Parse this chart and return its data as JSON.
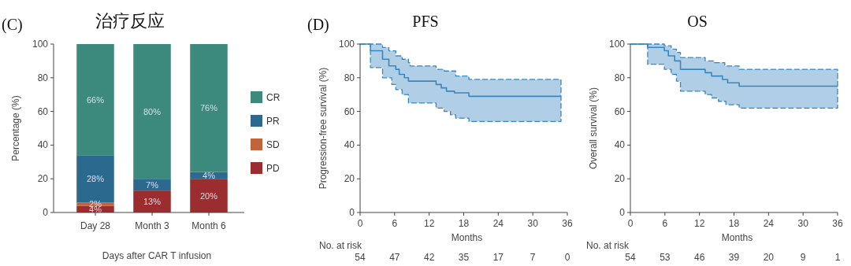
{
  "chart_data": [
    {
      "type": "bar",
      "stacked": true,
      "title": "治疗反应",
      "ylabel": "Percentage (%)",
      "xlabel": "Days after CAR T infusion",
      "categories": [
        "Day 28",
        "Month 3",
        "Month 6"
      ],
      "ylim": [
        0,
        100
      ],
      "yticks": [
        0,
        20,
        40,
        60,
        80,
        100
      ],
      "legend": "right",
      "annotations": [
        "(C)"
      ],
      "series": [
        {
          "name": "PD",
          "color": "#9b2d2e",
          "values": [
            4,
            13,
            20
          ],
          "value_labels": [
            "4%",
            "13%",
            "20%"
          ]
        },
        {
          "name": "SD",
          "color": "#c0643c",
          "values": [
            2,
            0,
            0
          ],
          "value_labels": [
            "2%",
            null,
            null
          ]
        },
        {
          "name": "PR",
          "color": "#2b6a8e",
          "values": [
            28,
            7,
            4
          ],
          "value_labels": [
            "28%",
            "7%",
            "4%"
          ]
        },
        {
          "name": "CR",
          "color": "#3b8a7d",
          "values": [
            66,
            80,
            76
          ],
          "value_labels": [
            "66%",
            "80%",
            "76%"
          ]
        }
      ]
    },
    {
      "type": "step",
      "title": "PFS",
      "ylabel": "Progression-free survival (%)",
      "xlabel": "Months",
      "xlim": [
        0,
        36
      ],
      "xticks": [
        0,
        6,
        12,
        18,
        24,
        30,
        36
      ],
      "ylim": [
        0,
        100
      ],
      "yticks": [
        0,
        20,
        40,
        60,
        80,
        100
      ],
      "annotations": [
        "(D)",
        "No. at risk",
        "54",
        "47",
        "42",
        "35",
        "17",
        "7",
        "0"
      ],
      "series": [
        {
          "color": "#3a87c0",
          "line_style": "solid",
          "x": [
            0,
            1.8,
            3.9,
            5.0,
            5.5,
            6.2,
            6.8,
            7.3,
            7.7,
            8.4,
            8.7,
            13.2,
            14.1,
            14.6,
            15.0,
            15.7,
            16.4,
            16.6,
            18.9,
            34.9
          ],
          "values": [
            100,
            96,
            91,
            87,
            87,
            85,
            82,
            82,
            80,
            78,
            78,
            76,
            74,
            74,
            72,
            72,
            71,
            71,
            69,
            69
          ],
          "upper": [
            100,
            100,
            98,
            96,
            96,
            93,
            93,
            91,
            91,
            89,
            87,
            85,
            85,
            84,
            84,
            84,
            84,
            81,
            79,
            79
          ],
          "lower": [
            100,
            86,
            80,
            80,
            76,
            73,
            73,
            70,
            70,
            65,
            65,
            62,
            62,
            60,
            60,
            58,
            58,
            56,
            54,
            54
          ]
        }
      ]
    },
    {
      "type": "step",
      "title": "OS",
      "ylabel": "Overall survival (%)",
      "xlabel": "Months",
      "xlim": [
        0,
        36
      ],
      "xticks": [
        0,
        6,
        12,
        18,
        24,
        30,
        36
      ],
      "ylim": [
        0,
        100
      ],
      "yticks": [
        0,
        20,
        40,
        60,
        80,
        100
      ],
      "annotations": [
        "No. at risk",
        "54",
        "53",
        "46",
        "39",
        "20",
        "9",
        "1"
      ],
      "series": [
        {
          "color": "#3a87c0",
          "line_style": "solid",
          "x": [
            0,
            3.0,
            5.9,
            6.6,
            7.1,
            7.7,
            8.0,
            8.7,
            13.0,
            14.1,
            14.6,
            15.3,
            16.0,
            16.4,
            16.6,
            16.9,
            18.9,
            36
          ],
          "values": [
            100,
            98,
            96,
            93,
            93,
            90,
            90,
            85,
            83,
            81,
            81,
            81,
            79,
            79,
            79,
            77,
            75,
            75
          ],
          "upper": [
            100,
            100,
            99,
            99,
            97,
            97,
            95,
            92,
            90,
            90,
            89,
            89,
            89,
            87,
            87,
            87,
            85,
            85
          ],
          "lower": [
            100,
            88,
            85,
            85,
            82,
            82,
            78,
            72,
            70,
            68,
            68,
            66,
            66,
            66,
            64,
            64,
            62,
            62
          ]
        }
      ]
    }
  ]
}
